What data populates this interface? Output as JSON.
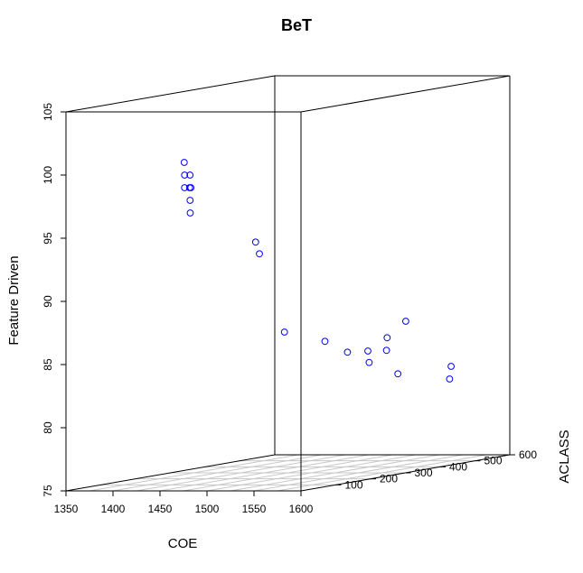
{
  "chart_data": {
    "type": "scatter3d",
    "title": "BeT",
    "xlabel": "COE",
    "ylabel": "ACLASS",
    "zlabel": "Feature Driven",
    "xlim": [
      1350,
      1600
    ],
    "ylim": [
      0,
      600
    ],
    "zlim": [
      75,
      105
    ],
    "x_ticks": [
      1350,
      1400,
      1450,
      1500,
      1550,
      1600
    ],
    "y_ticks": [
      100,
      200,
      300,
      400,
      500,
      600
    ],
    "z_ticks": [
      75,
      80,
      85,
      90,
      95,
      100,
      105
    ],
    "grid": true,
    "point_color": "#0000ff",
    "points": [
      {
        "x": 1475.8,
        "y": 0,
        "z": 101.0
      },
      {
        "x": 1476.2,
        "y": 0,
        "z": 100.0
      },
      {
        "x": 1481.9,
        "y": 0,
        "z": 100.0
      },
      {
        "x": 1476.2,
        "y": 0,
        "z": 99.0
      },
      {
        "x": 1481.4,
        "y": 0,
        "z": 99.0
      },
      {
        "x": 1482.9,
        "y": 0,
        "z": 99.0
      },
      {
        "x": 1482.0,
        "y": 0,
        "z": 98.0
      },
      {
        "x": 1482.2,
        "y": 0,
        "z": 97.0
      },
      {
        "x": 1536.9,
        "y": 40,
        "z": 94.5
      },
      {
        "x": 1535.4,
        "y": 55,
        "z": 93.5
      },
      {
        "x": 1460.2,
        "y": 330,
        "z": 86.0
      },
      {
        "x": 1483.0,
        "y": 385,
        "z": 85.0
      },
      {
        "x": 1495.8,
        "y": 415,
        "z": 84.0
      },
      {
        "x": 1510.1,
        "y": 435,
        "z": 84.0
      },
      {
        "x": 1526.9,
        "y": 445,
        "z": 85.0
      },
      {
        "x": 1526.2,
        "y": 445,
        "z": 84.0
      },
      {
        "x": 1504.1,
        "y": 455,
        "z": 83.0
      },
      {
        "x": 1527.2,
        "y": 475,
        "z": 82.0
      },
      {
        "x": 1522.6,
        "y": 510,
        "z": 86.0
      },
      {
        "x": 1537.6,
        "y": 600,
        "z": 82.0
      },
      {
        "x": 1536.0,
        "y": 600,
        "z": 81.0
      }
    ]
  }
}
